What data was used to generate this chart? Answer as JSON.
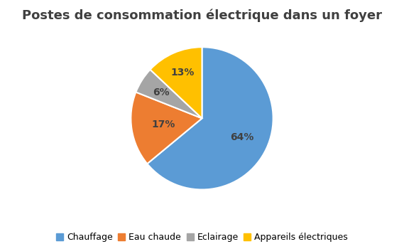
{
  "title": "Postes de consommation électrique dans un foyer",
  "labels": [
    "Chauffage",
    "Eau chaude",
    "Eclairage",
    "Appareils électriques"
  ],
  "values": [
    64,
    17,
    6,
    13
  ],
  "colors": [
    "#5B9BD5",
    "#ED7D31",
    "#A5A5A5",
    "#FFC000"
  ],
  "pct_labels": [
    "64%",
    "17%",
    "6%",
    "13%"
  ],
  "pct_colors": [
    "#404040",
    "#404040",
    "#404040",
    "#404040"
  ],
  "startangle": 90,
  "title_fontsize": 13,
  "legend_fontsize": 9,
  "pct_fontsize": 10,
  "background_color": "#FFFFFF",
  "label_radii": [
    0.62,
    0.55,
    0.68,
    0.7
  ]
}
